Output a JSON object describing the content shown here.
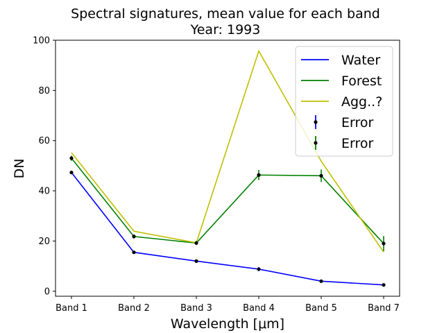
{
  "chart_data": {
    "type": "line",
    "title": "Spectral signatures, mean value for each band",
    "subtitle": "Year: 1993",
    "xlabel": "Wavelength [μm]",
    "ylabel": "DN",
    "categories": [
      "Band 1",
      "Band 2",
      "Band 3",
      "Band 4",
      "Band 5",
      "Band 7"
    ],
    "ylim": [
      -2,
      100
    ],
    "yticks": [
      0,
      20,
      40,
      60,
      80,
      100
    ],
    "grid": false,
    "legend_position": "top-right",
    "series": [
      {
        "name": "Water",
        "color": "#0000ff",
        "values": [
          47.3,
          15.5,
          12.0,
          8.8,
          4.0,
          2.5
        ],
        "errors": [
          0.6,
          0.5,
          0.5,
          0.8,
          0.4,
          0.4
        ]
      },
      {
        "name": "Forest",
        "color": "#008000",
        "values": [
          53.0,
          21.8,
          19.2,
          46.3,
          46.0,
          19.0
        ],
        "errors": [
          1.0,
          0.8,
          0.8,
          2.0,
          2.5,
          3.0
        ]
      },
      {
        "name": "Agg..?",
        "color": "#bfbf00",
        "values": [
          55.2,
          23.9,
          19.3,
          95.7,
          51.8,
          15.6
        ],
        "errors": null
      }
    ],
    "legend": [
      {
        "label": "Water",
        "kind": "line",
        "color": "#0000ff"
      },
      {
        "label": "Forest",
        "kind": "line",
        "color": "#008000"
      },
      {
        "label": "Agg..?",
        "kind": "line",
        "color": "#bfbf00"
      },
      {
        "label": "Error",
        "kind": "errorbar",
        "color": "#0000ff"
      },
      {
        "label": "Error",
        "kind": "errorbar",
        "color": "#008000"
      }
    ]
  }
}
